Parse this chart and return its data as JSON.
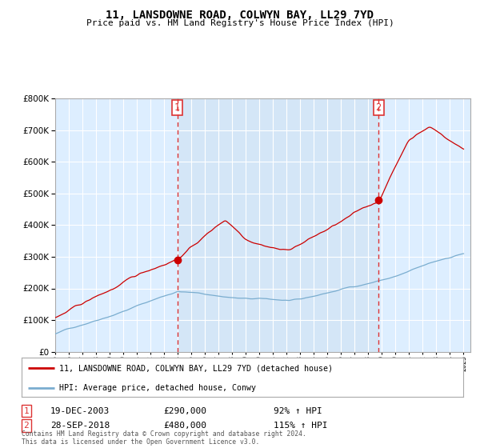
{
  "title": "11, LANSDOWNE ROAD, COLWYN BAY, LL29 7YD",
  "subtitle": "Price paid vs. HM Land Registry's House Price Index (HPI)",
  "legend_line1": "11, LANSDOWNE ROAD, COLWYN BAY, LL29 7YD (detached house)",
  "legend_line2": "HPI: Average price, detached house, Conwy",
  "annotation1_label": "1",
  "annotation1_date": "19-DEC-2003",
  "annotation1_price": "£290,000",
  "annotation1_hpi": "92% ↑ HPI",
  "annotation2_label": "2",
  "annotation2_date": "28-SEP-2018",
  "annotation2_price": "£480,000",
  "annotation2_hpi": "115% ↑ HPI",
  "footer": "Contains HM Land Registry data © Crown copyright and database right 2024.\nThis data is licensed under the Open Government Licence v3.0.",
  "red_color": "#cc0000",
  "blue_color": "#7aadcf",
  "background_color": "#ddeeff",
  "highlight_color": "#cce0f0",
  "vline_color": "#dd3333",
  "ylim": [
    0,
    800000
  ],
  "xlim_start": 1995.0,
  "xlim_end": 2025.5,
  "sale1_x": 2003.97,
  "sale1_y": 290000,
  "sale2_x": 2018.75,
  "sale2_y": 480000,
  "n_months": 361
}
